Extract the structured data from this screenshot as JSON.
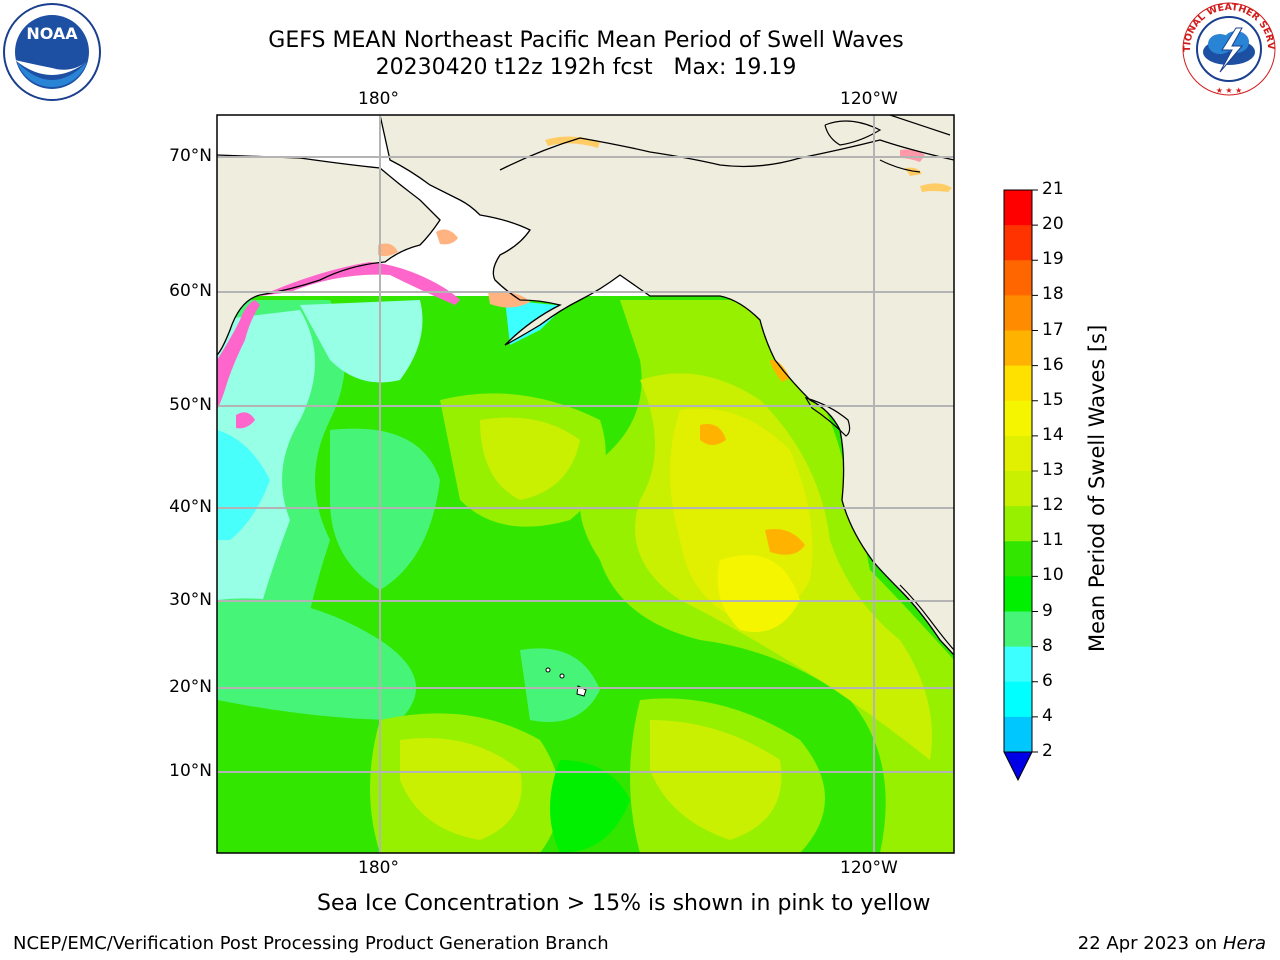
{
  "title_line1": "GEFS MEAN Northeast Pacific Mean Period of Swell Waves",
  "title_line2": "20230420 t12z 192h fcst   Max: 19.19",
  "lon_labels_top": [
    "180°",
    "120°W"
  ],
  "lon_labels_bottom": [
    "180°",
    "120°W"
  ],
  "lat_labels": [
    "70°N",
    "60°N",
    "50°N",
    "40°N",
    "30°N",
    "20°N",
    "10°N"
  ],
  "colorbar": {
    "label": "Mean Period of Swell Waves [s]",
    "ticks": [
      "21",
      "20",
      "19",
      "18",
      "17",
      "16",
      "15",
      "14",
      "13",
      "12",
      "11",
      "10",
      "9",
      "8",
      "6",
      "4",
      "2"
    ],
    "colors": [
      "#ff0000",
      "#ff3300",
      "#ff6600",
      "#ff8c00",
      "#ffb300",
      "#ffe100",
      "#f5f500",
      "#e1f000",
      "#c8f000",
      "#96f000",
      "#32e600",
      "#00f000",
      "#46f578",
      "#96ffe6",
      "#3cffff",
      "#00ffff",
      "#00c8ff",
      "#0064ff",
      "#0000e6"
    ]
  },
  "caption": "Sea Ice Concentration > 15% is shown in pink to yellow",
  "footer_left": "NCEP/EMC/Verification Post Processing Product Generation Branch",
  "footer_right_date": "22 Apr 2023 on ",
  "footer_right_host": "Hera",
  "logos": {
    "noaa_text": "NOAA",
    "nws_text": "NATIONAL WEATHER SERVICE"
  },
  "map_colors": {
    "land": "#efedde",
    "ocean_white": "#ffffff",
    "grid": "#b4b4b4",
    "coast": "#000000"
  }
}
